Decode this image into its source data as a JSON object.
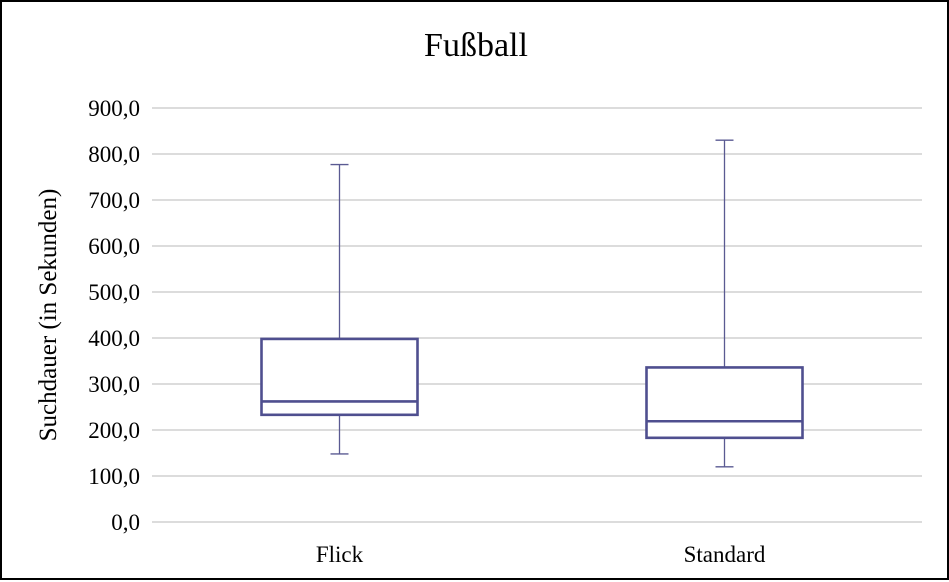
{
  "chart_data": {
    "type": "boxplot",
    "title": "Fußball",
    "xlabel": "",
    "ylabel": "Suchdauer (in Sekunden)",
    "ylim": [
      0,
      900
    ],
    "ytick_values": [
      0,
      100,
      200,
      300,
      400,
      500,
      600,
      700,
      800,
      900
    ],
    "ytick_labels": [
      "0,0",
      "100,0",
      "200,0",
      "300,0",
      "400,0",
      "500,0",
      "600,0",
      "700,0",
      "800,0",
      "900,0"
    ],
    "categories": [
      "Flick",
      "Standard"
    ],
    "boxes": [
      {
        "category": "Flick",
        "min": 148,
        "q1": 233,
        "median": 262,
        "q3": 398,
        "max": 777
      },
      {
        "category": "Standard",
        "min": 120,
        "q1": 183,
        "median": 219,
        "q3": 336,
        "max": 830
      }
    ],
    "grid": true,
    "colors": {
      "box": "#4f4f8f",
      "whisker": "#5a5a92",
      "grid": "#c8c8c8"
    }
  }
}
